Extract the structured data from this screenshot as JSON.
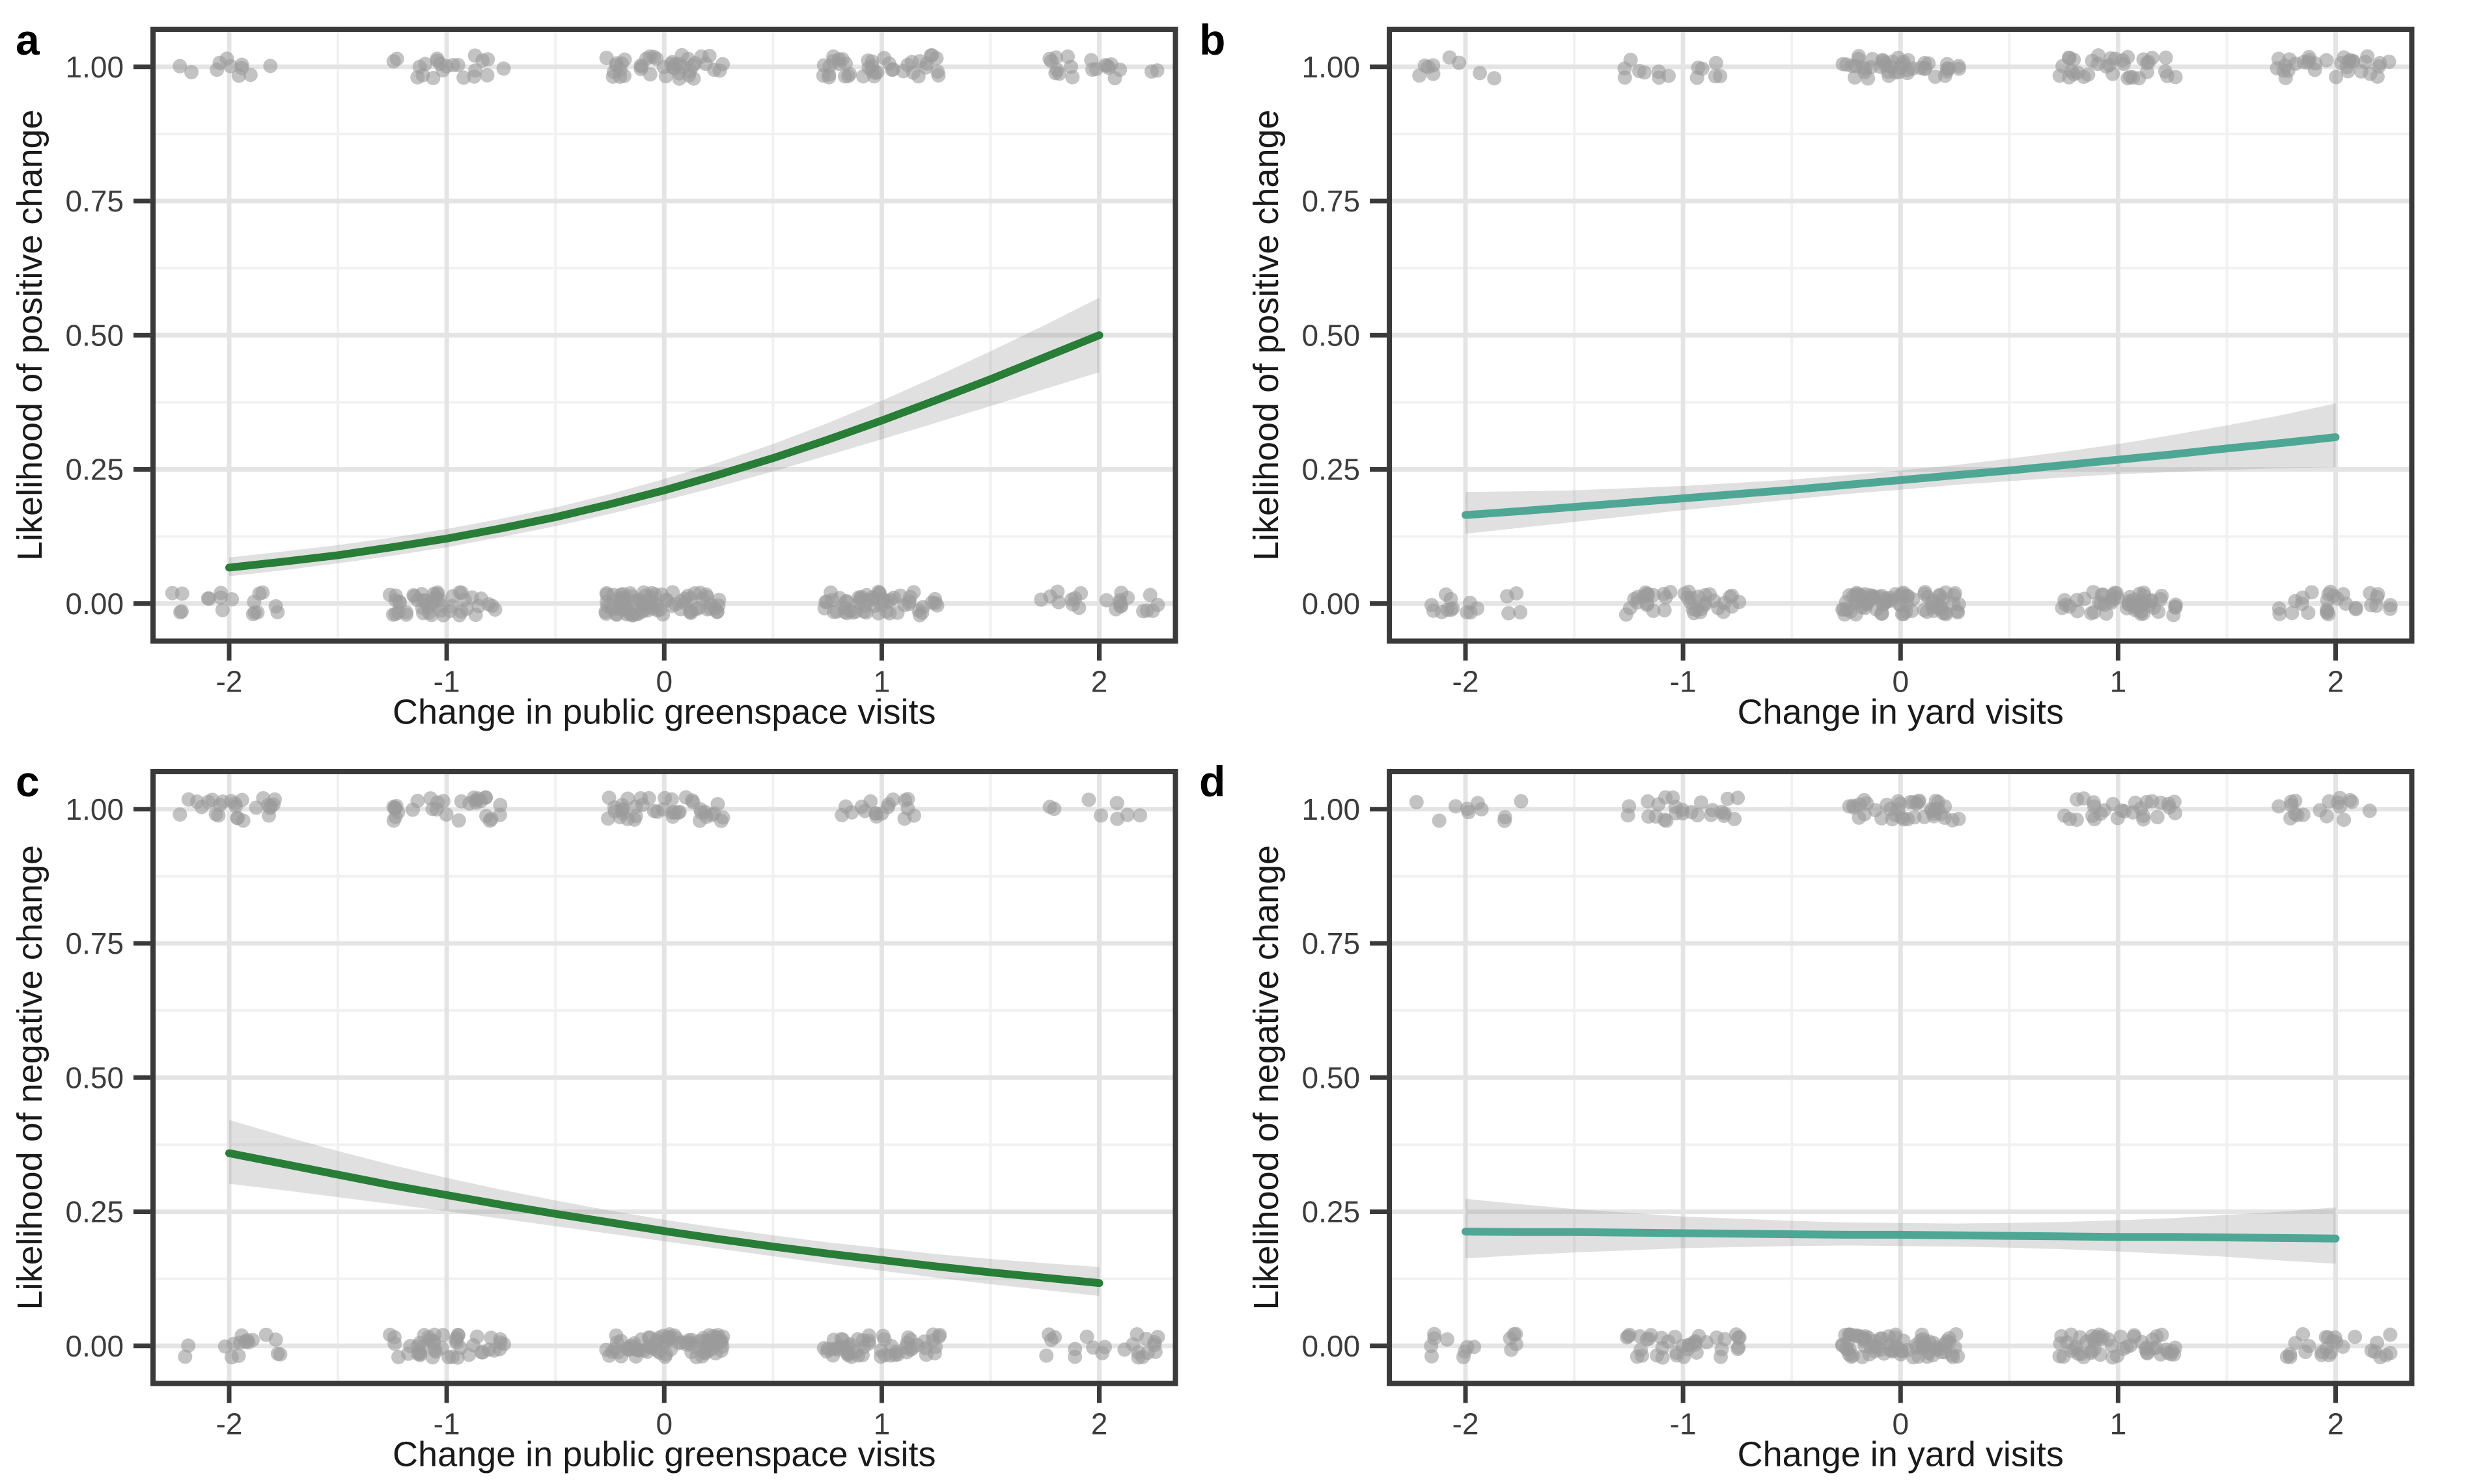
{
  "palette": {
    "dark_green": "#287d37",
    "teal": "#4da794",
    "point_gray": "#9b9b9b",
    "ribbon_gray": "#999999",
    "grid_major": "#e4e4e4",
    "grid_minor": "#f1f1f1",
    "axis_line": "#3a3a3a",
    "tick_text": "#3c3c3c",
    "title_text": "#1a1a1a",
    "background": "#ffffff"
  },
  "chart_data": [
    {
      "panel_label": "a",
      "type": "line",
      "xlabel": "Change in public greenspace visits",
      "ylabel": "Likelihood of positive change",
      "line_color": "#287d37",
      "xlim": [
        -2.35,
        2.35
      ],
      "ylim": [
        -0.07,
        1.07
      ],
      "x_tick_values": [
        -2,
        -1,
        0,
        1,
        2
      ],
      "x_tick_labels": [
        "-2",
        "-1",
        "0",
        "1",
        "2"
      ],
      "y_tick_values": [
        0,
        0.25,
        0.5,
        0.75,
        1
      ],
      "y_tick_labels": [
        "0.00",
        "0.25",
        "0.50",
        "0.75",
        "1.00"
      ],
      "x_minor": [
        -1.5,
        -0.5,
        0.5,
        1.5
      ],
      "y_minor": [
        0.125,
        0.375,
        0.625,
        0.875
      ],
      "x": [
        -2,
        -1.75,
        -1.5,
        -1.25,
        -1,
        -0.75,
        -0.5,
        -0.25,
        0,
        0.25,
        0.5,
        0.75,
        1,
        1.25,
        1.5,
        1.75,
        2
      ],
      "fit": [
        0.067,
        0.078,
        0.09,
        0.105,
        0.121,
        0.14,
        0.161,
        0.185,
        0.211,
        0.24,
        0.271,
        0.305,
        0.341,
        0.379,
        0.418,
        0.459,
        0.5
      ],
      "ci_lower": [
        0.051,
        0.062,
        0.075,
        0.089,
        0.105,
        0.124,
        0.144,
        0.167,
        0.192,
        0.218,
        0.246,
        0.276,
        0.306,
        0.337,
        0.368,
        0.4,
        0.431
      ],
      "ci_upper": [
        0.086,
        0.097,
        0.109,
        0.123,
        0.139,
        0.158,
        0.179,
        0.204,
        0.232,
        0.263,
        0.297,
        0.336,
        0.378,
        0.423,
        0.47,
        0.519,
        0.57
      ],
      "jitter": {
        "x_centers": [
          -2,
          -1,
          0,
          1,
          2
        ],
        "counts_y1": [
          11,
          22,
          42,
          40,
          20
        ],
        "counts_y0": [
          18,
          48,
          85,
          55,
          22
        ],
        "x_spread": 0.27,
        "y_spread": 0.022,
        "seed": 11
      }
    },
    {
      "panel_label": "b",
      "type": "line",
      "xlabel": "Change in yard visits",
      "ylabel": "Likelihood of positive change",
      "line_color": "#4da794",
      "xlim": [
        -2.35,
        2.35
      ],
      "ylim": [
        -0.07,
        1.07
      ],
      "x_tick_values": [
        -2,
        -1,
        0,
        1,
        2
      ],
      "x_tick_labels": [
        "-2",
        "-1",
        "0",
        "1",
        "2"
      ],
      "y_tick_values": [
        0,
        0.25,
        0.5,
        0.75,
        1
      ],
      "y_tick_labels": [
        "0.00",
        "0.25",
        "0.50",
        "0.75",
        "1.00"
      ],
      "x_minor": [
        -1.5,
        -0.5,
        0.5,
        1.5
      ],
      "y_minor": [
        0.125,
        0.375,
        0.625,
        0.875
      ],
      "x": [
        -2,
        -1.75,
        -1.5,
        -1.25,
        -1,
        -0.75,
        -0.5,
        -0.25,
        0,
        0.25,
        0.5,
        0.75,
        1,
        1.25,
        1.5,
        1.75,
        2
      ],
      "fit": [
        0.165,
        0.172,
        0.18,
        0.188,
        0.196,
        0.204,
        0.212,
        0.221,
        0.23,
        0.239,
        0.248,
        0.258,
        0.268,
        0.278,
        0.289,
        0.299,
        0.31
      ],
      "ci_lower": [
        0.13,
        0.141,
        0.152,
        0.163,
        0.174,
        0.184,
        0.194,
        0.204,
        0.212,
        0.221,
        0.228,
        0.235,
        0.241,
        0.245,
        0.249,
        0.252,
        0.254
      ],
      "ci_upper": [
        0.208,
        0.209,
        0.211,
        0.215,
        0.219,
        0.225,
        0.231,
        0.239,
        0.248,
        0.258,
        0.27,
        0.283,
        0.297,
        0.314,
        0.332,
        0.351,
        0.373
      ],
      "jitter": {
        "x_centers": [
          -2,
          -1,
          0,
          1,
          2
        ],
        "counts_y1": [
          9,
          14,
          45,
          35,
          32
        ],
        "counts_y0": [
          16,
          40,
          80,
          55,
          28
        ],
        "x_spread": 0.27,
        "y_spread": 0.022,
        "seed": 22
      }
    },
    {
      "panel_label": "c",
      "type": "line",
      "xlabel": "Change in public greenspace visits",
      "ylabel": "Likelihood of negative change",
      "line_color": "#287d37",
      "xlim": [
        -2.35,
        2.35
      ],
      "ylim": [
        -0.07,
        1.07
      ],
      "x_tick_values": [
        -2,
        -1,
        0,
        1,
        2
      ],
      "x_tick_labels": [
        "-2",
        "-1",
        "0",
        "1",
        "2"
      ],
      "y_tick_values": [
        0,
        0.25,
        0.5,
        0.75,
        1
      ],
      "y_tick_labels": [
        "0.00",
        "0.25",
        "0.50",
        "0.75",
        "1.00"
      ],
      "x_minor": [
        -1.5,
        -0.5,
        0.5,
        1.5
      ],
      "y_minor": [
        0.125,
        0.375,
        0.625,
        0.875
      ],
      "x": [
        -2,
        -1.75,
        -1.5,
        -1.25,
        -1,
        -0.75,
        -0.5,
        -0.25,
        0,
        0.25,
        0.5,
        0.75,
        1,
        1.25,
        1.5,
        1.75,
        2
      ],
      "fit": [
        0.359,
        0.339,
        0.319,
        0.299,
        0.281,
        0.263,
        0.246,
        0.23,
        0.214,
        0.199,
        0.185,
        0.172,
        0.16,
        0.148,
        0.137,
        0.127,
        0.117
      ],
      "ci_lower": [
        0.302,
        0.29,
        0.277,
        0.264,
        0.251,
        0.237,
        0.223,
        0.209,
        0.195,
        0.181,
        0.167,
        0.153,
        0.14,
        0.127,
        0.115,
        0.104,
        0.093
      ],
      "ci_upper": [
        0.421,
        0.391,
        0.363,
        0.337,
        0.313,
        0.291,
        0.271,
        0.252,
        0.235,
        0.22,
        0.206,
        0.193,
        0.182,
        0.171,
        0.162,
        0.154,
        0.147
      ],
      "jitter": {
        "x_centers": [
          -2,
          -1,
          0,
          1,
          2
        ],
        "counts_y1": [
          25,
          30,
          40,
          18,
          8
        ],
        "counts_y0": [
          16,
          45,
          80,
          55,
          22
        ],
        "x_spread": 0.27,
        "y_spread": 0.022,
        "seed": 33
      }
    },
    {
      "panel_label": "d",
      "type": "line",
      "xlabel": "Change in yard visits",
      "ylabel": "Likelihood of negative change",
      "line_color": "#4da794",
      "xlim": [
        -2.35,
        2.35
      ],
      "ylim": [
        -0.07,
        1.07
      ],
      "x_tick_values": [
        -2,
        -1,
        0,
        1,
        2
      ],
      "x_tick_labels": [
        "-2",
        "-1",
        "0",
        "1",
        "2"
      ],
      "y_tick_values": [
        0,
        0.25,
        0.5,
        0.75,
        1
      ],
      "y_tick_labels": [
        "0.00",
        "0.25",
        "0.50",
        "0.75",
        "1.00"
      ],
      "x_minor": [
        -1.5,
        -0.5,
        0.5,
        1.5
      ],
      "y_minor": [
        0.125,
        0.375,
        0.625,
        0.875
      ],
      "x": [
        -2,
        -1.75,
        -1.5,
        -1.25,
        -1,
        -0.75,
        -0.5,
        -0.25,
        0,
        0.25,
        0.5,
        0.75,
        1,
        1.25,
        1.5,
        1.75,
        2
      ],
      "fit": [
        0.213,
        0.212,
        0.212,
        0.211,
        0.21,
        0.209,
        0.208,
        0.207,
        0.207,
        0.206,
        0.205,
        0.204,
        0.203,
        0.203,
        0.202,
        0.201,
        0.2
      ],
      "ci_lower": [
        0.163,
        0.169,
        0.174,
        0.178,
        0.182,
        0.184,
        0.186,
        0.187,
        0.186,
        0.185,
        0.183,
        0.18,
        0.176,
        0.171,
        0.166,
        0.159,
        0.153
      ],
      "ci_upper": [
        0.274,
        0.264,
        0.255,
        0.248,
        0.241,
        0.237,
        0.233,
        0.23,
        0.229,
        0.228,
        0.229,
        0.231,
        0.234,
        0.238,
        0.244,
        0.25,
        0.258
      ],
      "jitter": {
        "x_centers": [
          -2,
          -1,
          0,
          1,
          2
        ],
        "counts_y1": [
          10,
          25,
          40,
          28,
          18
        ],
        "counts_y0": [
          14,
          38,
          78,
          52,
          26
        ],
        "x_spread": 0.27,
        "y_spread": 0.022,
        "seed": 44
      }
    }
  ]
}
